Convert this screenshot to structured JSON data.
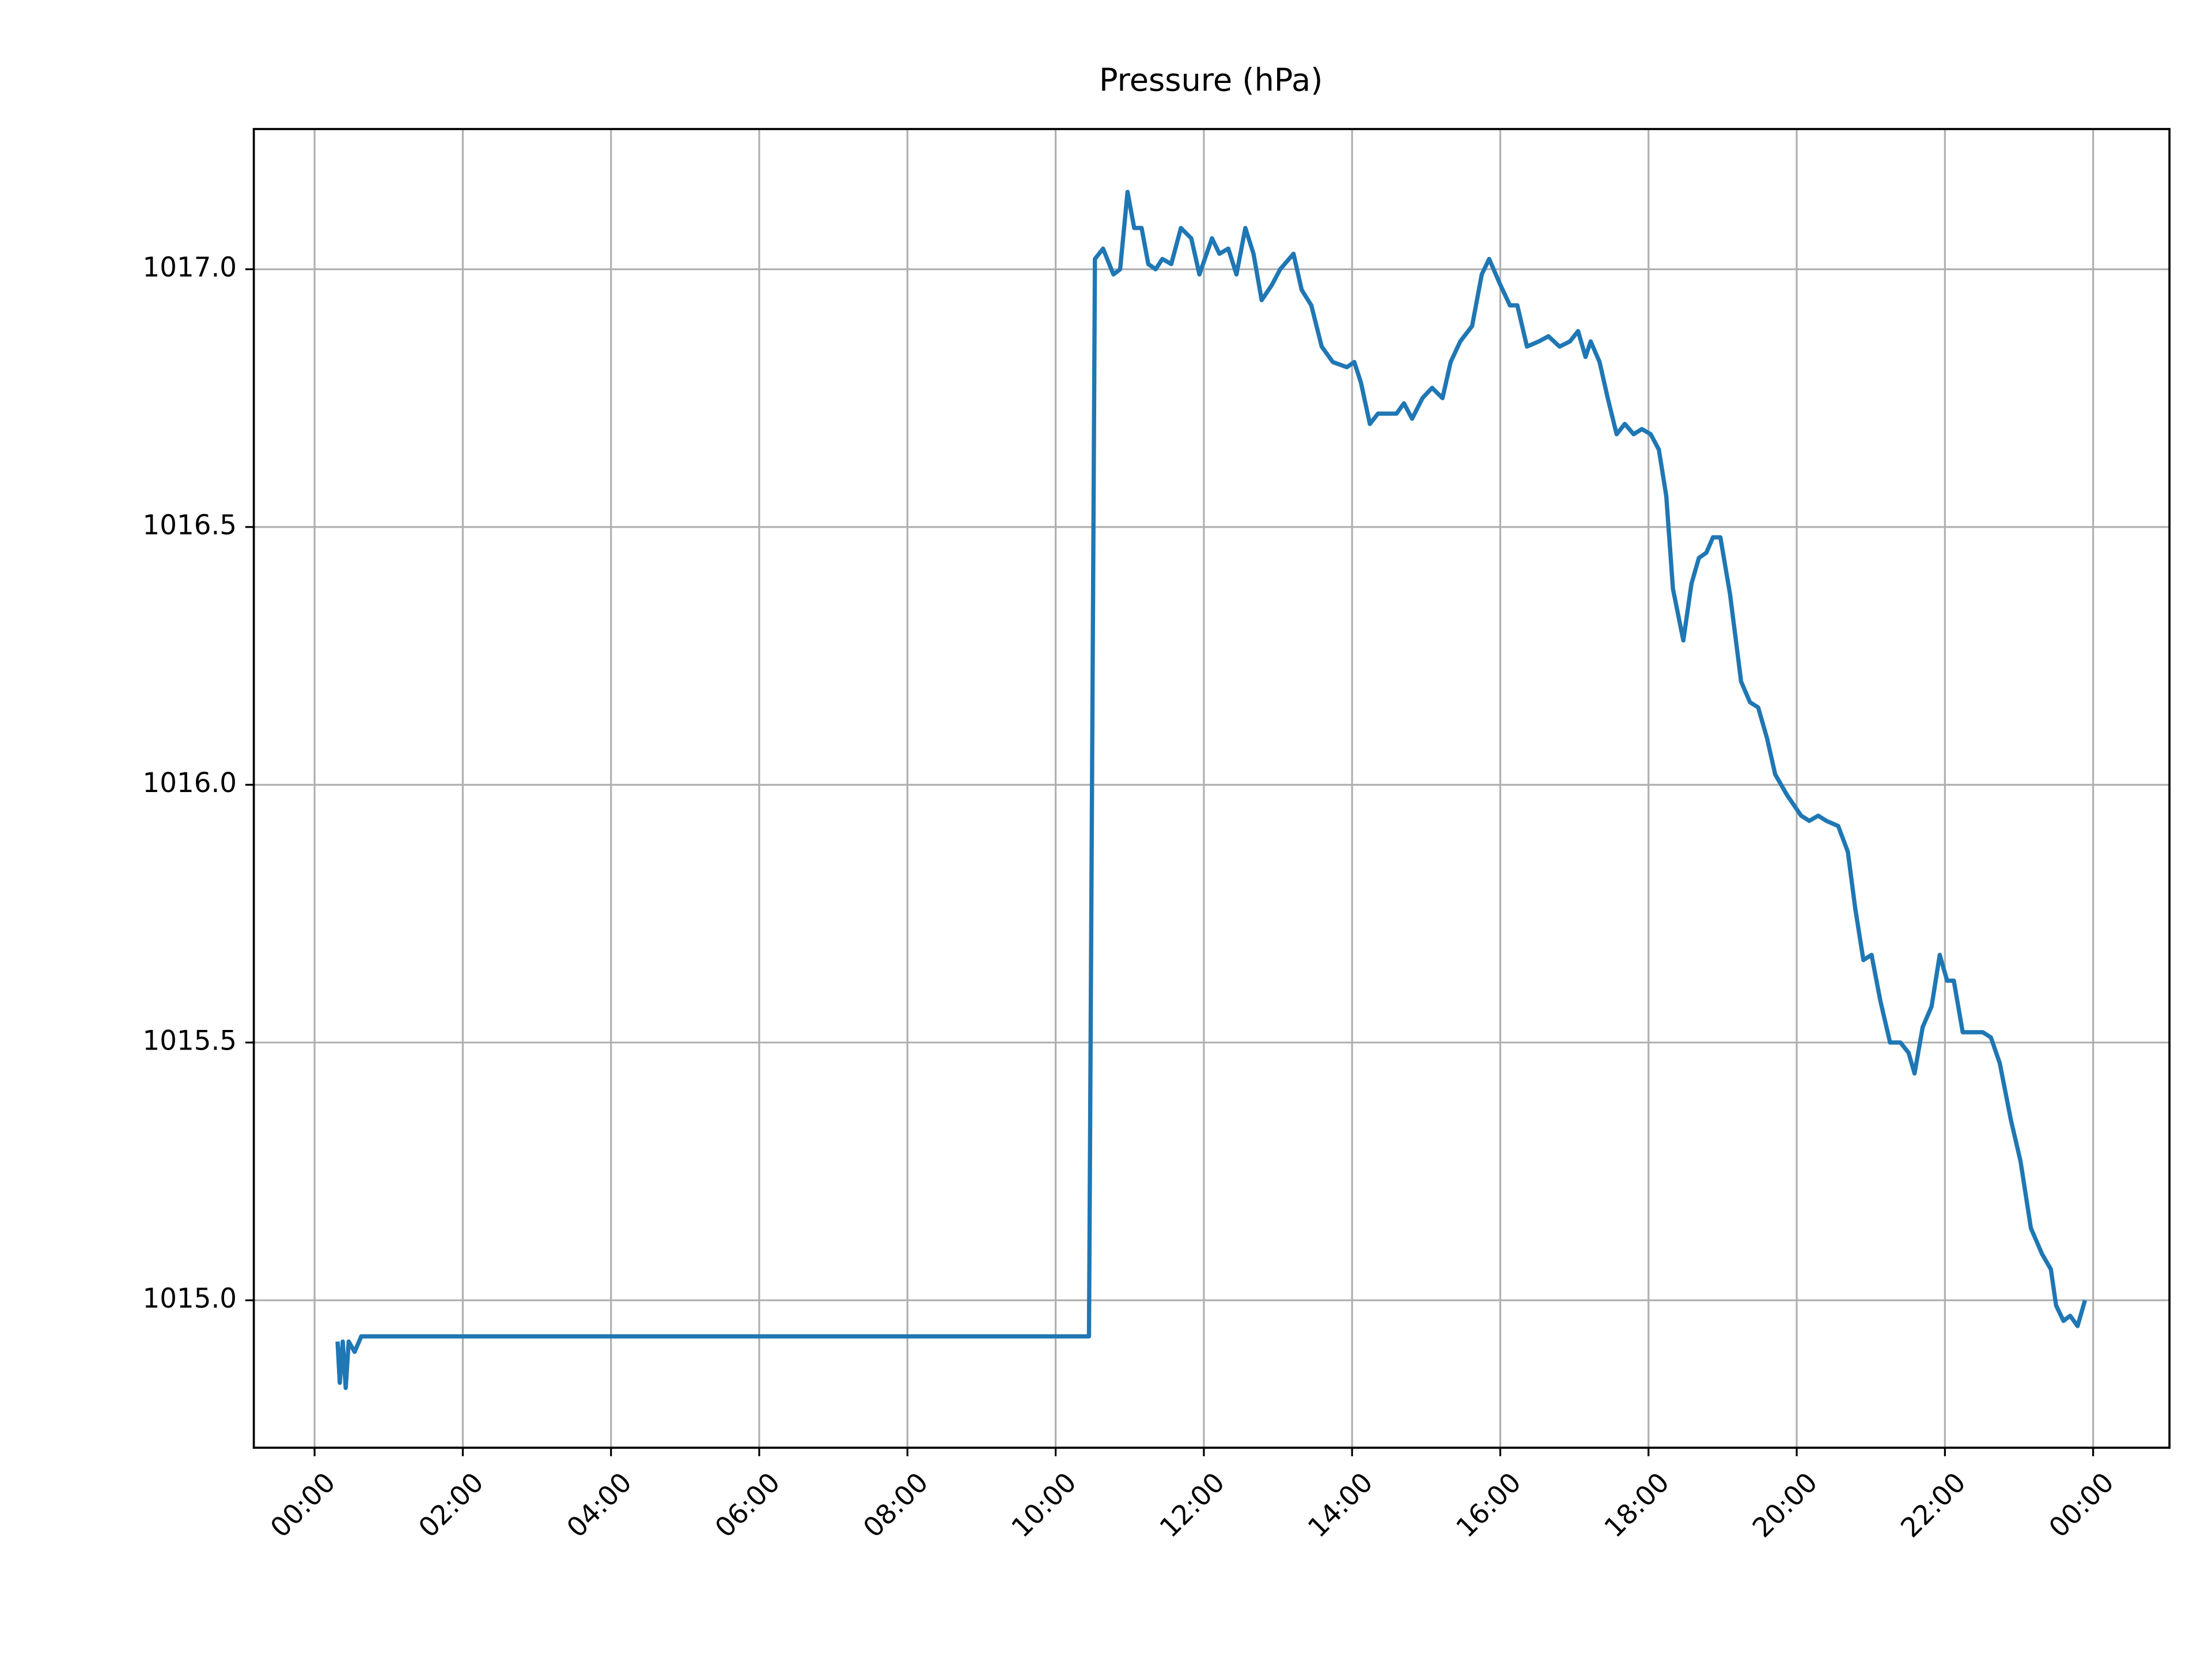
{
  "chart_data": {
    "type": "line",
    "title": "Pressure (hPa)",
    "xlim": [
      -0.82,
      25.03
    ],
    "ylim": [
      1014.714,
      1017.272
    ],
    "xticks": [
      {
        "value": 0,
        "label": "00:00"
      },
      {
        "value": 2,
        "label": "02:00"
      },
      {
        "value": 4,
        "label": "04:00"
      },
      {
        "value": 6,
        "label": "06:00"
      },
      {
        "value": 8,
        "label": "08:00"
      },
      {
        "value": 10,
        "label": "10:00"
      },
      {
        "value": 12,
        "label": "12:00"
      },
      {
        "value": 14,
        "label": "14:00"
      },
      {
        "value": 16,
        "label": "16:00"
      },
      {
        "value": 18,
        "label": "18:00"
      },
      {
        "value": 20,
        "label": "20:00"
      },
      {
        "value": 22,
        "label": "22:00"
      },
      {
        "value": 24,
        "label": "00:00"
      }
    ],
    "yticks": [
      {
        "value": 1015,
        "label": "1015.0"
      },
      {
        "value": 1015.5,
        "label": "1015.5"
      },
      {
        "value": 1016,
        "label": "1016.0"
      },
      {
        "value": 1016.5,
        "label": "1016.5"
      },
      {
        "value": 1017,
        "label": "1017.0"
      }
    ],
    "grid": true,
    "series": [
      {
        "color": "#1f77b4",
        "x": [
          0.31,
          0.34,
          0.38,
          0.42,
          0.46,
          0.54,
          0.63,
          0.73,
          10.45,
          10.53,
          10.64,
          10.78,
          10.87,
          10.97,
          11.06,
          11.16,
          11.25,
          11.35,
          11.44,
          11.56,
          11.69,
          11.83,
          11.94,
          12.11,
          12.21,
          12.33,
          12.44,
          12.56,
          12.67,
          12.78,
          12.92,
          13.03,
          13.21,
          13.32,
          13.45,
          13.59,
          13.74,
          13.93,
          14.03,
          14.12,
          14.24,
          14.35,
          14.47,
          14.6,
          14.7,
          14.81,
          14.95,
          15.08,
          15.22,
          15.33,
          15.46,
          15.62,
          15.75,
          15.85,
          16.0,
          16.13,
          16.23,
          16.36,
          16.52,
          16.65,
          16.8,
          16.94,
          17.05,
          17.15,
          17.22,
          17.34,
          17.45,
          17.57,
          17.68,
          17.8,
          17.91,
          18.03,
          18.14,
          18.24,
          18.33,
          18.47,
          18.58,
          18.68,
          18.78,
          18.87,
          18.97,
          19.1,
          19.25,
          19.37,
          19.48,
          19.6,
          19.71,
          19.87,
          20.06,
          20.17,
          20.29,
          20.4,
          20.56,
          20.69,
          20.79,
          20.9,
          21.01,
          21.13,
          21.26,
          21.4,
          21.51,
          21.59,
          21.7,
          21.82,
          21.93,
          22.03,
          22.12,
          22.24,
          22.39,
          22.51,
          22.62,
          22.74,
          22.89,
          23.02,
          23.16,
          23.31,
          23.43,
          23.5,
          23.6,
          23.69,
          23.79,
          23.89
        ],
        "values": [
          1014.92,
          1014.84,
          1014.92,
          1014.83,
          1014.92,
          1014.9,
          1014.93,
          1014.93,
          1014.93,
          1017.02,
          1017.04,
          1016.99,
          1017.0,
          1017.15,
          1017.08,
          1017.08,
          1017.01,
          1017.0,
          1017.02,
          1017.01,
          1017.08,
          1017.06,
          1016.99,
          1017.06,
          1017.03,
          1017.04,
          1016.99,
          1017.08,
          1017.03,
          1016.94,
          1016.97,
          1017.0,
          1017.03,
          1016.96,
          1016.93,
          1016.85,
          1016.82,
          1016.81,
          1016.82,
          1016.78,
          1016.7,
          1016.72,
          1016.72,
          1016.72,
          1016.74,
          1016.71,
          1016.75,
          1016.77,
          1016.75,
          1016.82,
          1016.86,
          1016.89,
          1016.99,
          1017.02,
          1016.97,
          1016.93,
          1016.93,
          1016.85,
          1016.86,
          1016.87,
          1016.85,
          1016.86,
          1016.88,
          1016.83,
          1016.86,
          1016.82,
          1016.75,
          1016.68,
          1016.7,
          1016.68,
          1016.69,
          1016.68,
          1016.65,
          1016.56,
          1016.38,
          1016.28,
          1016.39,
          1016.44,
          1016.45,
          1016.48,
          1016.48,
          1016.37,
          1016.2,
          1016.16,
          1016.15,
          1016.09,
          1016.02,
          1015.98,
          1015.94,
          1015.93,
          1015.94,
          1015.93,
          1015.92,
          1015.87,
          1015.76,
          1015.66,
          1015.67,
          1015.58,
          1015.5,
          1015.5,
          1015.48,
          1015.44,
          1015.53,
          1015.57,
          1015.67,
          1015.62,
          1015.62,
          1015.52,
          1015.52,
          1015.52,
          1015.51,
          1015.46,
          1015.35,
          1015.27,
          1015.14,
          1015.09,
          1015.06,
          1014.99,
          1014.96,
          1014.97,
          1014.95,
          1015.0
        ]
      }
    ]
  }
}
